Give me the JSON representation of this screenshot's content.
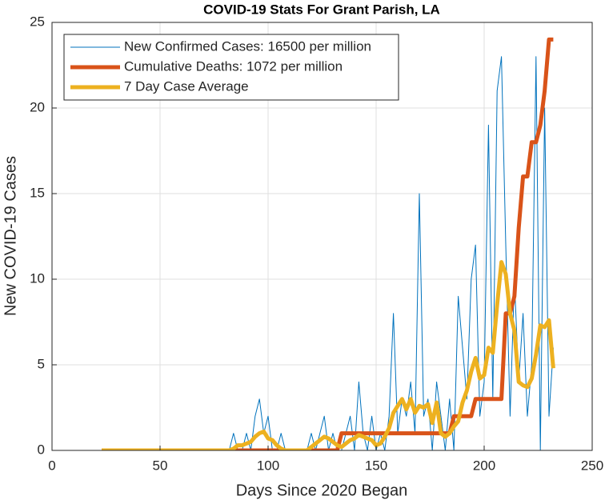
{
  "chart_data": {
    "type": "line",
    "title": "COVID-19 Stats For Grant Parish, LA",
    "xlabel": "Days Since 2020 Began",
    "ylabel": "New COVID-19 Cases",
    "x": [
      23,
      80,
      82,
      84,
      86,
      88,
      90,
      92,
      94,
      96,
      98,
      100,
      102,
      104,
      106,
      108,
      110,
      112,
      114,
      116,
      118,
      120,
      122,
      124,
      126,
      128,
      130,
      132,
      134,
      136,
      138,
      140,
      142,
      144,
      146,
      148,
      150,
      152,
      154,
      156,
      158,
      160,
      162,
      164,
      166,
      168,
      170,
      172,
      174,
      176,
      178,
      180,
      182,
      184,
      186,
      188,
      190,
      192,
      194,
      196,
      198,
      200,
      202,
      204,
      206,
      208,
      210,
      212,
      214,
      216,
      218,
      220,
      222,
      224,
      226,
      228,
      230,
      232
    ],
    "series": [
      {
        "name": "New Confirmed Cases: 16500 per million",
        "color": "#0072bd",
        "width": 1,
        "values": [
          0,
          0,
          0,
          1,
          0,
          0,
          1,
          0,
          2,
          3,
          1,
          2,
          0,
          0,
          1,
          0,
          0,
          0,
          0,
          0,
          0,
          1,
          0,
          1,
          2,
          0,
          1,
          0,
          0,
          1,
          2,
          0,
          4,
          1,
          0,
          2,
          0,
          1,
          0,
          2,
          8,
          1,
          3,
          2,
          4,
          1,
          15,
          2,
          3,
          0,
          4,
          2,
          0,
          3,
          0,
          9,
          6,
          3,
          10,
          12,
          2,
          4,
          19,
          3,
          21,
          23,
          12,
          2,
          10,
          4,
          8,
          2,
          5,
          23,
          0,
          20,
          2,
          6
        ]
      },
      {
        "name": "Cumulative Deaths: 1072 per million",
        "color": "#d95319",
        "width": 5,
        "values": [
          0,
          0,
          0,
          0,
          0,
          0,
          0,
          0,
          0,
          0,
          0,
          0,
          0,
          0,
          0,
          0,
          0,
          0,
          0,
          0,
          0,
          0,
          0,
          0,
          0,
          0,
          0,
          0,
          1,
          1,
          1,
          1,
          1,
          1,
          1,
          1,
          1,
          1,
          1,
          1,
          1,
          1,
          1,
          1,
          1,
          1,
          1,
          1,
          1,
          1,
          1,
          1,
          1,
          1,
          2,
          2,
          2,
          2,
          2,
          3,
          3,
          3,
          3,
          3,
          3,
          3,
          8,
          8,
          9,
          13,
          16,
          16,
          18,
          18,
          19,
          21,
          24,
          24
        ]
      },
      {
        "name": "7 Day Case Average",
        "color": "#edb120",
        "width": 5,
        "values": [
          0,
          0,
          0,
          0.1,
          0.3,
          0.3,
          0.4,
          0.5,
          0.8,
          1,
          1.1,
          0.7,
          0.6,
          0.3,
          0.1,
          0,
          0,
          0,
          0,
          0,
          0,
          0.2,
          0.4,
          0.6,
          0.8,
          0.7,
          0.5,
          0.3,
          0.2,
          0.4,
          0.6,
          0.7,
          0.9,
          0.8,
          0.7,
          0.6,
          0.3,
          0.4,
          0.8,
          1.3,
          2.2,
          2.6,
          3,
          2.4,
          3,
          2.2,
          2.6,
          2.5,
          2.7,
          1.6,
          2.8,
          1,
          0.8,
          1,
          1.4,
          1.7,
          2.8,
          3.5,
          4.6,
          5.4,
          4.2,
          4.4,
          6,
          5.7,
          8.5,
          11,
          10.3,
          8,
          7,
          4,
          3.8,
          3.7,
          4.2,
          5.6,
          7.3,
          7.2,
          7.6,
          4.8
        ]
      }
    ],
    "xlim": [
      0,
      250
    ],
    "xticks": [
      0,
      50,
      100,
      150,
      200,
      250
    ],
    "ylim": [
      0,
      25
    ],
    "yticks": [
      0,
      5,
      10,
      15,
      20,
      25
    ],
    "grid": true,
    "legend": "upper left"
  }
}
